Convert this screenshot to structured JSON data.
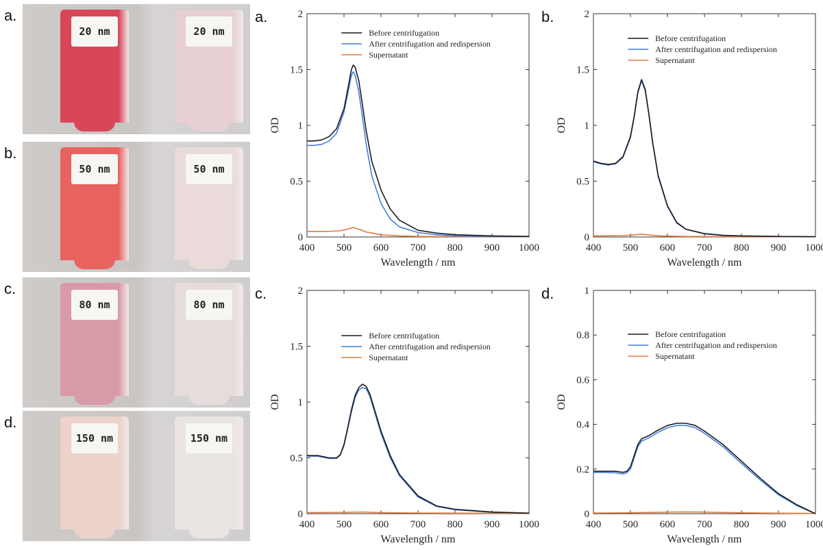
{
  "photos": [
    {
      "label": "a.",
      "tag_left": "20 nm",
      "tag_right": "20 nm",
      "fill_left": "#d84658",
      "fill_right": "#e7cfd3"
    },
    {
      "label": "b.",
      "tag_left": "50 nm",
      "tag_right": "50 nm",
      "fill_left": "#e8625f",
      "fill_right": "#eadada"
    },
    {
      "label": "c.",
      "tag_left": "80 nm",
      "tag_right": "80 nm",
      "fill_left": "#d89aa6",
      "fill_right": "#e6dcdc"
    },
    {
      "label": "d.",
      "tag_left": "150 nm",
      "tag_right": "150 nm",
      "fill_left": "#ecd2cb",
      "fill_right": "#e9e4e2"
    }
  ],
  "colors": {
    "before": "#1a1a1a",
    "after": "#3f7fdf",
    "supernatant": "#e07a3a"
  },
  "chart_data": [
    {
      "label": "a.",
      "type": "line",
      "xlabel": "Wavelength / nm",
      "ylabel": "OD",
      "xlim": [
        400,
        1000
      ],
      "ylim": [
        0,
        2
      ],
      "xticks": [
        400,
        500,
        600,
        700,
        800,
        900,
        1000
      ],
      "yticks": [
        {
          "v": 0,
          "t": "0"
        },
        {
          "v": 0.5,
          "t": "0.5"
        },
        {
          "v": 1,
          "t": "1"
        },
        {
          "v": 1.5,
          "t": "1.5"
        },
        {
          "v": 2,
          "t": "2"
        }
      ],
      "series": [
        {
          "name": "Before centrifugation",
          "color_key": "before",
          "x": [
            400,
            420,
            440,
            460,
            480,
            500,
            510,
            520,
            525,
            530,
            540,
            550,
            560,
            575,
            600,
            625,
            650,
            700,
            750,
            800,
            900,
            1000
          ],
          "y": [
            0.86,
            0.86,
            0.87,
            0.9,
            0.97,
            1.15,
            1.32,
            1.5,
            1.54,
            1.52,
            1.4,
            1.18,
            0.95,
            0.68,
            0.42,
            0.25,
            0.15,
            0.06,
            0.035,
            0.02,
            0.01,
            0.005
          ]
        },
        {
          "name": "After centrifugation and redispersion",
          "color_key": "after",
          "x": [
            400,
            420,
            440,
            460,
            480,
            500,
            510,
            520,
            525,
            530,
            540,
            550,
            560,
            575,
            600,
            625,
            650,
            700,
            750,
            800,
            900,
            1000
          ],
          "y": [
            0.82,
            0.82,
            0.83,
            0.86,
            0.93,
            1.12,
            1.28,
            1.45,
            1.48,
            1.45,
            1.3,
            1.07,
            0.83,
            0.55,
            0.3,
            0.16,
            0.09,
            0.04,
            0.02,
            0.01,
            0.005,
            0.003
          ]
        },
        {
          "name": "Supernatant",
          "color_key": "supernatant",
          "x": [
            400,
            450,
            490,
            510,
            525,
            540,
            560,
            600,
            650,
            700,
            800,
            1000
          ],
          "y": [
            0.05,
            0.05,
            0.055,
            0.07,
            0.085,
            0.07,
            0.045,
            0.02,
            0.01,
            0.005,
            0.003,
            0.002
          ]
        }
      ]
    },
    {
      "label": "b.",
      "type": "line",
      "xlabel": "Wavelength / nm",
      "ylabel": "OD",
      "xlim": [
        400,
        1000
      ],
      "ylim": [
        0,
        2
      ],
      "xticks": [
        400,
        500,
        600,
        700,
        800,
        900,
        1000
      ],
      "yticks": [
        {
          "v": 0,
          "t": "0"
        },
        {
          "v": 0.5,
          "t": "0.5"
        },
        {
          "v": 1,
          "t": "1"
        },
        {
          "v": 1.5,
          "t": "1.5"
        },
        {
          "v": 2,
          "t": "2"
        }
      ],
      "series": [
        {
          "name": "Before centrifugation",
          "color_key": "before",
          "x": [
            400,
            420,
            440,
            460,
            480,
            500,
            510,
            520,
            530,
            540,
            550,
            560,
            575,
            600,
            625,
            650,
            700,
            750,
            800,
            900,
            1000
          ],
          "y": [
            0.68,
            0.66,
            0.65,
            0.66,
            0.72,
            0.9,
            1.08,
            1.3,
            1.41,
            1.32,
            1.1,
            0.85,
            0.55,
            0.28,
            0.13,
            0.07,
            0.03,
            0.015,
            0.01,
            0.005,
            0.003
          ]
        },
        {
          "name": "After centrifugation and redispersion",
          "color_key": "after",
          "x": [
            400,
            420,
            440,
            460,
            480,
            500,
            510,
            520,
            530,
            540,
            550,
            560,
            575,
            600,
            625,
            650,
            700,
            750,
            800,
            900,
            1000
          ],
          "y": [
            0.675,
            0.655,
            0.645,
            0.655,
            0.715,
            0.89,
            1.07,
            1.29,
            1.4,
            1.31,
            1.09,
            0.84,
            0.54,
            0.275,
            0.125,
            0.068,
            0.028,
            0.014,
            0.009,
            0.004,
            0.002
          ]
        },
        {
          "name": "Supernatant",
          "color_key": "supernatant",
          "x": [
            400,
            480,
            510,
            530,
            550,
            580,
            650,
            1000
          ],
          "y": [
            0.01,
            0.012,
            0.018,
            0.025,
            0.018,
            0.01,
            0.004,
            0.001
          ]
        }
      ]
    },
    {
      "label": "c.",
      "type": "line",
      "xlabel": "Wavelength / nm",
      "ylabel": "OD",
      "xlim": [
        400,
        1000
      ],
      "ylim": [
        0,
        2
      ],
      "xticks": [
        400,
        500,
        600,
        700,
        800,
        900,
        1000
      ],
      "yticks": [
        {
          "v": 0,
          "t": "0"
        },
        {
          "v": 0.5,
          "t": "0.5"
        },
        {
          "v": 1,
          "t": "1"
        },
        {
          "v": 1.5,
          "t": "1.5"
        },
        {
          "v": 2,
          "t": "2"
        }
      ],
      "series": [
        {
          "name": "Before centrifugation",
          "color_key": "before",
          "x": [
            400,
            430,
            460,
            480,
            490,
            500,
            510,
            520,
            530,
            540,
            550,
            560,
            570,
            580,
            600,
            625,
            650,
            700,
            750,
            800,
            900,
            1000
          ],
          "y": [
            0.52,
            0.52,
            0.5,
            0.5,
            0.53,
            0.62,
            0.77,
            0.93,
            1.06,
            1.13,
            1.16,
            1.14,
            1.07,
            0.96,
            0.74,
            0.52,
            0.35,
            0.16,
            0.07,
            0.04,
            0.015,
            0.005
          ]
        },
        {
          "name": "After centrifugation and redispersion",
          "color_key": "after",
          "x": [
            400,
            430,
            460,
            480,
            490,
            500,
            510,
            520,
            530,
            540,
            550,
            560,
            570,
            580,
            600,
            625,
            650,
            700,
            750,
            800,
            900,
            1000
          ],
          "y": [
            0.515,
            0.515,
            0.495,
            0.495,
            0.525,
            0.61,
            0.76,
            0.91,
            1.04,
            1.11,
            1.13,
            1.12,
            1.05,
            0.94,
            0.72,
            0.5,
            0.34,
            0.15,
            0.065,
            0.035,
            0.012,
            0.004
          ]
        },
        {
          "name": "Supernatant",
          "color_key": "supernatant",
          "x": [
            400,
            500,
            550,
            600,
            700,
            1000
          ],
          "y": [
            0.01,
            0.012,
            0.015,
            0.01,
            0.006,
            0.002
          ]
        }
      ]
    },
    {
      "label": "d.",
      "type": "line",
      "xlabel": "Wavelength / nm",
      "ylabel": "OD",
      "xlim": [
        400,
        1000
      ],
      "ylim": [
        0,
        1
      ],
      "xticks": [
        400,
        500,
        600,
        700,
        800,
        900,
        1000
      ],
      "yticks": [
        {
          "v": 0,
          "t": "0"
        },
        {
          "v": 0.2,
          "t": "0.2"
        },
        {
          "v": 0.4,
          "t": "0.4"
        },
        {
          "v": 0.6,
          "t": "0.6"
        },
        {
          "v": 0.8,
          "t": "0.8"
        },
        {
          "v": 1,
          "t": "1"
        }
      ],
      "series": [
        {
          "name": "Before centrifugation",
          "color_key": "before",
          "x": [
            400,
            430,
            460,
            480,
            490,
            500,
            510,
            520,
            530,
            550,
            575,
            600,
            625,
            650,
            675,
            700,
            750,
            800,
            850,
            900,
            950,
            1000
          ],
          "y": [
            0.19,
            0.19,
            0.19,
            0.185,
            0.19,
            0.21,
            0.26,
            0.31,
            0.335,
            0.35,
            0.375,
            0.395,
            0.405,
            0.405,
            0.395,
            0.37,
            0.31,
            0.235,
            0.16,
            0.09,
            0.04,
            0.0
          ]
        },
        {
          "name": "After centrifugation and redispersion",
          "color_key": "after",
          "x": [
            400,
            430,
            460,
            480,
            490,
            500,
            510,
            520,
            530,
            550,
            575,
            600,
            625,
            650,
            675,
            700,
            750,
            800,
            850,
            900,
            950,
            1000
          ],
          "y": [
            0.185,
            0.185,
            0.183,
            0.178,
            0.183,
            0.2,
            0.25,
            0.3,
            0.325,
            0.34,
            0.365,
            0.385,
            0.395,
            0.395,
            0.385,
            0.36,
            0.3,
            0.225,
            0.152,
            0.085,
            0.036,
            0.0
          ]
        },
        {
          "name": "Supernatant",
          "color_key": "supernatant",
          "x": [
            400,
            500,
            600,
            650,
            700,
            800,
            1000
          ],
          "y": [
            0.003,
            0.004,
            0.007,
            0.008,
            0.007,
            0.004,
            0.001
          ]
        }
      ]
    }
  ]
}
